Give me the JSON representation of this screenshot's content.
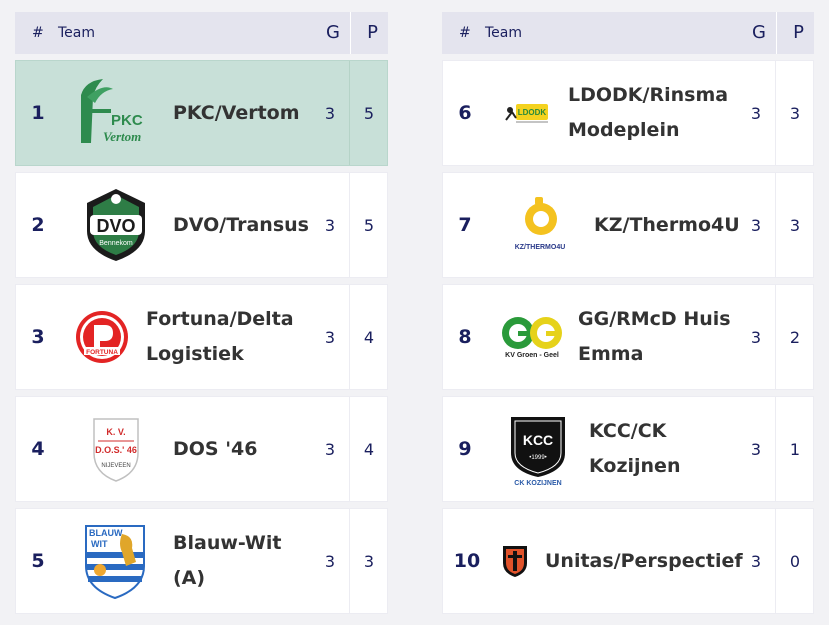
{
  "headers": {
    "num": "#",
    "team": "Team",
    "g": "G",
    "p": "P"
  },
  "left": [
    {
      "rank": "1",
      "name": "PKC/Vertom",
      "g": "3",
      "p": "5",
      "logo_text": "PKC",
      "logo_sub": "Vertom"
    },
    {
      "rank": "2",
      "name": "DVO/Transus",
      "g": "3",
      "p": "5",
      "logo_text": "DVO",
      "logo_sub": "Bennekom"
    },
    {
      "rank": "3",
      "name": "Fortuna/Delta Logistiek",
      "g": "3",
      "p": "4",
      "logo_text": "FORTUNA"
    },
    {
      "rank": "4",
      "name": "DOS '46",
      "g": "3",
      "p": "4",
      "logo_text": "K. V.",
      "logo_sub": "D.O.S.' 46",
      "logo_sub2": "NIJEVEEN"
    },
    {
      "rank": "5",
      "name": "Blauw-Wit (A)",
      "g": "3",
      "p": "3",
      "logo_text": "BLAUW",
      "logo_sub": "WIT"
    }
  ],
  "right": [
    {
      "rank": "6",
      "name": "LDODK/Rinsma Modeplein",
      "g": "3",
      "p": "3",
      "logo_text": "LDODK"
    },
    {
      "rank": "7",
      "name": "KZ/Thermo4U",
      "g": "3",
      "p": "3",
      "logo_text": "KZ/THERMO4U"
    },
    {
      "rank": "8",
      "name": "GG/RMcD Huis Emma",
      "g": "3",
      "p": "2",
      "logo_text": "KV Groen - Geel"
    },
    {
      "rank": "9",
      "name": "KCC/CK Kozijnen",
      "g": "3",
      "p": "1",
      "logo_text": "KCC",
      "logo_sub": "•1999•",
      "logo_sub2": "CK KOZIJNEN"
    },
    {
      "rank": "10",
      "name": "Unitas/Perspectief",
      "g": "3",
      "p": "0"
    }
  ],
  "colors": {
    "highlight": "#c8e0d8",
    "accent": "#1a1f5e",
    "header": "#e4e4ee"
  }
}
